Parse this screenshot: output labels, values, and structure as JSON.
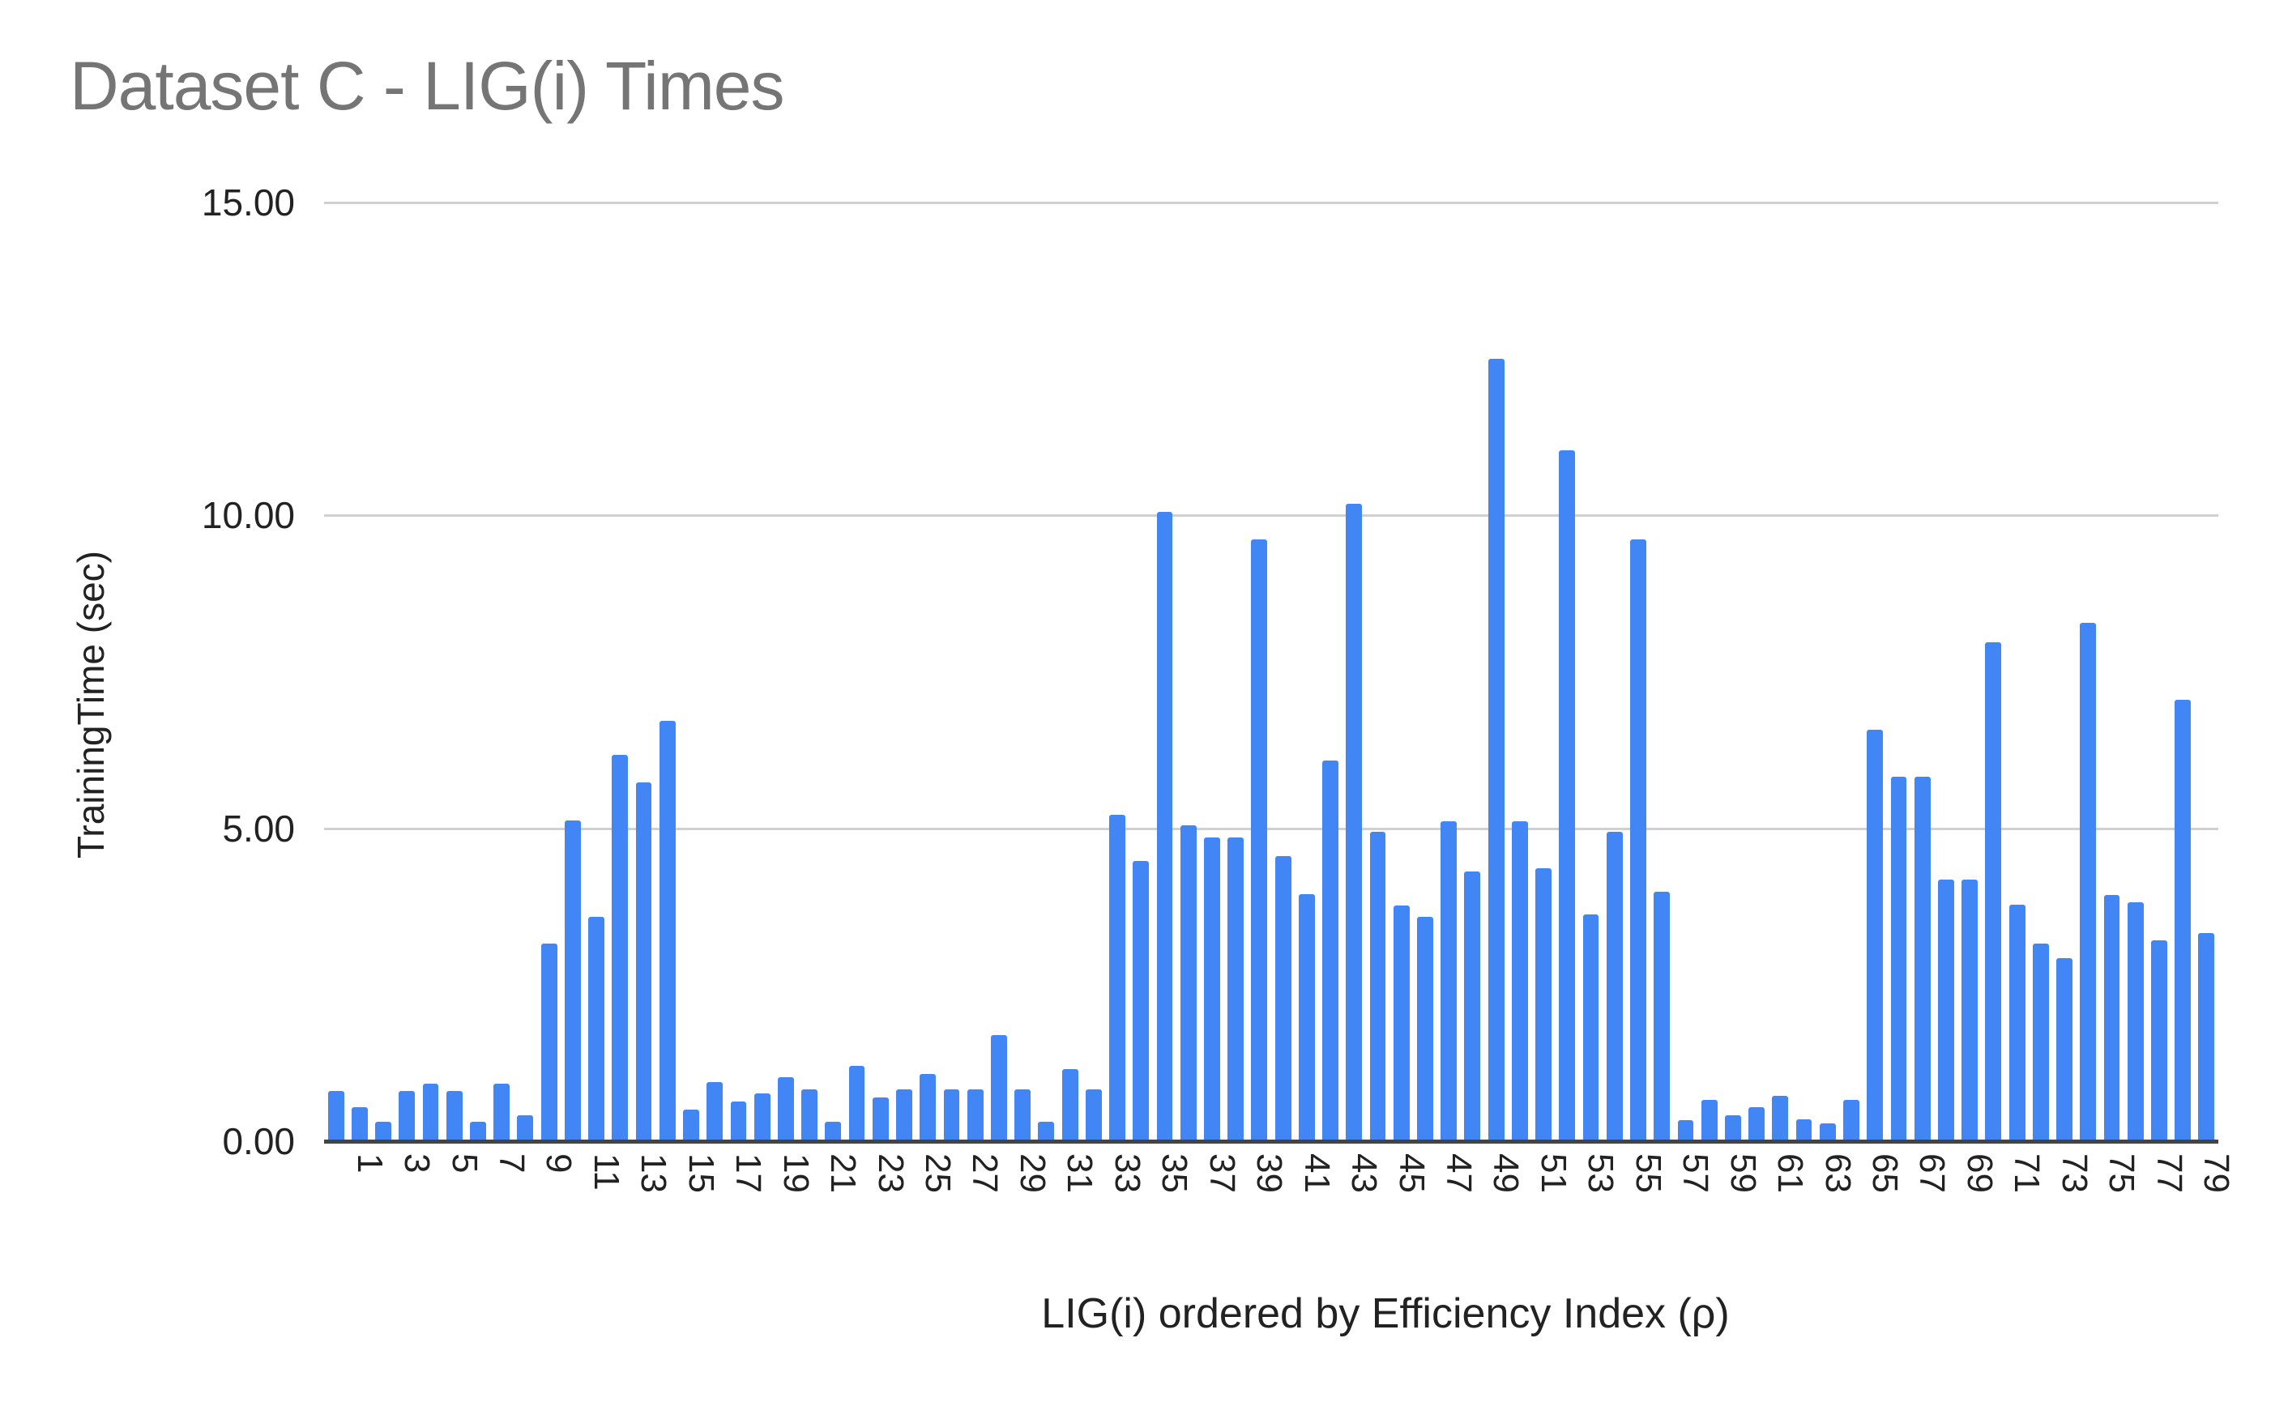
{
  "chart": {
    "title": "Dataset C - LIG(i) Times",
    "ylabel": "TrainingTime (sec)",
    "xlabel": "LIG(i) ordered by Efficiency Index (ρ)",
    "bar_color": "#4285F4",
    "grid_color": "#d0d0d0",
    "title_color": "#757575"
  },
  "chart_data": {
    "type": "bar",
    "title": "Dataset C - LIG(i) Times",
    "xlabel": "LIG(i) ordered by Efficiency Index (ρ)",
    "ylabel": "TrainingTime (sec)",
    "ylim": [
      0,
      15
    ],
    "yticks": [
      "0.00",
      "5.00",
      "10.00",
      "15.00"
    ],
    "grid": true,
    "legend": null,
    "xtick_labels_shown": [
      "1",
      "3",
      "5",
      "7",
      "9",
      "11",
      "13",
      "15",
      "17",
      "19",
      "21",
      "23",
      "25",
      "27",
      "29",
      "31",
      "33",
      "35",
      "37",
      "39",
      "41",
      "43",
      "45",
      "47",
      "49",
      "51",
      "53",
      "55",
      "57",
      "59",
      "61",
      "63",
      "65",
      "67",
      "69",
      "71",
      "73",
      "75",
      "77",
      "79"
    ],
    "categories": [
      1,
      2,
      3,
      4,
      5,
      6,
      7,
      8,
      9,
      10,
      11,
      12,
      13,
      14,
      15,
      16,
      17,
      18,
      19,
      20,
      21,
      22,
      23,
      24,
      25,
      26,
      27,
      28,
      29,
      30,
      31,
      32,
      33,
      34,
      35,
      36,
      37,
      38,
      39,
      40,
      41,
      42,
      43,
      44,
      45,
      46,
      47,
      48,
      49,
      50,
      51,
      52,
      53,
      54,
      55,
      56,
      57,
      58,
      59,
      60,
      61,
      62,
      63,
      64,
      65,
      66,
      67,
      68,
      69,
      70,
      71,
      72,
      73,
      74,
      75,
      76,
      77,
      78,
      79,
      80
    ],
    "values": [
      0.8,
      0.55,
      0.31,
      0.8,
      0.92,
      0.8,
      0.31,
      0.92,
      0.42,
      3.16,
      5.12,
      3.59,
      6.17,
      5.74,
      6.72,
      0.51,
      0.95,
      0.63,
      0.77,
      1.02,
      0.83,
      0.31,
      1.2,
      0.7,
      0.83,
      1.08,
      0.83,
      0.83,
      1.7,
      0.83,
      0.31,
      1.15,
      0.83,
      5.22,
      4.48,
      10.05,
      5.05,
      4.85,
      4.85,
      9.62,
      4.55,
      3.95,
      6.08,
      10.18,
      4.94,
      3.76,
      3.59,
      5.11,
      4.31,
      12.5,
      5.11,
      4.36,
      11.04,
      3.63,
      4.94,
      9.62,
      3.99,
      0.34,
      0.66,
      0.41,
      0.54,
      0.72,
      0.35,
      0.29,
      0.66,
      6.57,
      5.83,
      5.83,
      4.18,
      4.18,
      7.97,
      3.78,
      3.16,
      2.92,
      8.28,
      3.94,
      3.82,
      3.21,
      7.06,
      3.33
    ]
  }
}
